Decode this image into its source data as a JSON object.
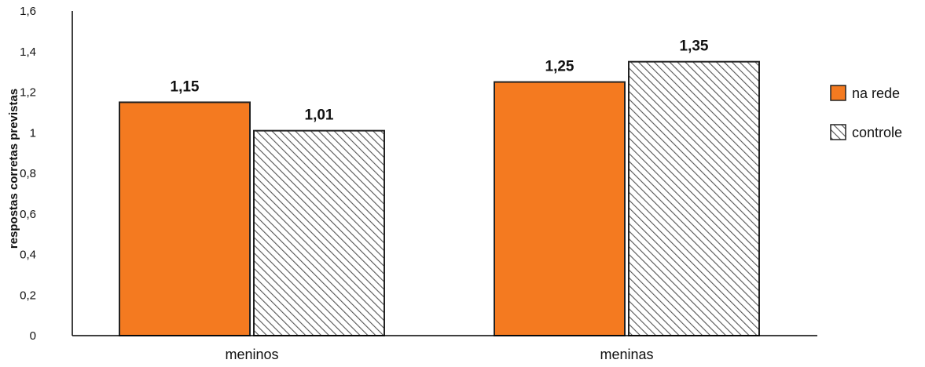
{
  "chart_data": {
    "type": "bar",
    "categories": [
      "meninos",
      "meninas"
    ],
    "series": [
      {
        "name": "na rede",
        "values": [
          1.15,
          1.25
        ],
        "labels": [
          "1,15",
          "1,25"
        ],
        "color": "#f47a20",
        "fill": "solid"
      },
      {
        "name": "controle",
        "values": [
          1.01,
          1.35
        ],
        "labels": [
          "1,01",
          "1,35"
        ],
        "color": "#4d4d4d",
        "fill": "hatched"
      }
    ],
    "title": "",
    "xlabel": "",
    "ylabel": "respostas corretas previstas",
    "ylim": [
      0,
      1.6
    ],
    "yticks": [
      0,
      0.2,
      0.4,
      0.6,
      0.8,
      1,
      1.2,
      1.4,
      1.6
    ],
    "ytick_labels": [
      "0",
      "0,2",
      "0,4",
      "0,6",
      "0,8",
      "1",
      "1,2",
      "1,4",
      "1,6"
    ],
    "grid": false,
    "legend_position": "right"
  }
}
